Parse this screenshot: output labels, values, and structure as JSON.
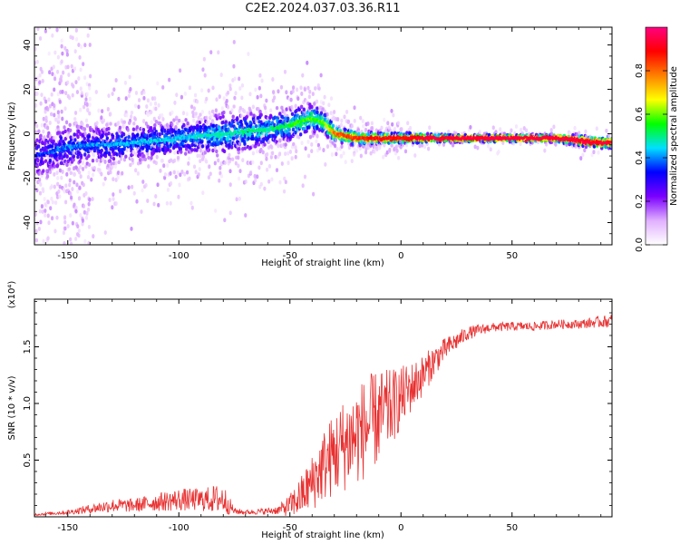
{
  "title": "C2E2.2024.037.03.36.R11",
  "chart_data": [
    {
      "type": "heatmap",
      "title": "C2E2.2024.037.03.36.R11",
      "xlabel": "Height of straight line (km)",
      "ylabel": "Frequency (Hz)",
      "xlim": [
        -165,
        95
      ],
      "ylim": [
        -50,
        48
      ],
      "x_ticks": [
        -150,
        -100,
        -50,
        0,
        50
      ],
      "y_ticks": [
        -40,
        -20,
        0,
        20,
        40
      ],
      "colorbar": {
        "label": "Normalized spectral amplitude",
        "range": [
          0,
          1
        ],
        "ticks": [
          0.0,
          0.2,
          0.4,
          0.6,
          0.8
        ],
        "tick_labels": [
          "0.0",
          "0.2",
          "0.4",
          "0.6",
          "0.8"
        ],
        "colormap": [
          "#ffffff",
          "#e0b0ff",
          "#7b00ff",
          "#0000ff",
          "#00e0ff",
          "#00ff00",
          "#ffff00",
          "#ff8000",
          "#ff0000",
          "#ff0080"
        ]
      },
      "ridge": {
        "x": [
          -165,
          -150,
          -140,
          -130,
          -120,
          -110,
          -100,
          -90,
          -80,
          -70,
          -60,
          -50,
          -40,
          -35,
          -30,
          -25,
          -20,
          -10,
          0,
          10,
          20,
          40,
          60,
          70,
          80,
          90,
          95
        ],
        "frequency": [
          -10,
          -6,
          -5,
          -5,
          -4,
          -3,
          -2,
          -1,
          0,
          1,
          2,
          4,
          7,
          5,
          0,
          -1,
          -2,
          -2,
          -2,
          -2,
          -2,
          -2,
          -2,
          -2,
          -3,
          -4,
          -4
        ],
        "amplitude": [
          0.3,
          0.35,
          0.35,
          0.38,
          0.38,
          0.4,
          0.4,
          0.42,
          0.45,
          0.45,
          0.45,
          0.5,
          0.55,
          0.55,
          0.75,
          0.8,
          0.8,
          0.85,
          0.85,
          0.9,
          0.9,
          0.92,
          0.92,
          0.92,
          0.9,
          0.9,
          0.9
        ],
        "spread": [
          16,
          14,
          12,
          12,
          11,
          11,
          11,
          11,
          13,
          12,
          11,
          10,
          9,
          7,
          5,
          4,
          4,
          3,
          3,
          2.5,
          2,
          2,
          2,
          2,
          3,
          3,
          3
        ]
      }
    },
    {
      "type": "line",
      "xlabel": "Height of straight line (km)",
      "ylabel": "SNR (10 * v/v)",
      "y_scale_label": "(x10⁴)",
      "xlim": [
        -165,
        95
      ],
      "ylim": [
        0,
        1.92
      ],
      "x_ticks": [
        -150,
        -100,
        -50,
        0,
        50
      ],
      "y_ticks": [
        0.5,
        1.0,
        1.5
      ],
      "y_tick_labels": [
        "0.5",
        "1.0",
        "1.5"
      ],
      "series": [
        {
          "color": "#e83030",
          "x": [
            -165,
            -150,
            -140,
            -130,
            -120,
            -110,
            -100,
            -90,
            -80,
            -75,
            -70,
            -60,
            -55,
            -50,
            -45,
            -40,
            -35,
            -30,
            -25,
            -20,
            -15,
            -10,
            -5,
            0,
            5,
            10,
            15,
            20,
            25,
            30,
            40,
            50,
            60,
            70,
            80,
            90,
            95
          ],
          "values": [
            0.02,
            0.04,
            0.07,
            0.1,
            0.1,
            0.13,
            0.15,
            0.15,
            0.16,
            0.05,
            0.04,
            0.05,
            0.06,
            0.1,
            0.18,
            0.3,
            0.45,
            0.55,
            0.65,
            0.72,
            0.8,
            0.88,
            0.95,
            1.05,
            1.15,
            1.25,
            1.38,
            1.48,
            1.55,
            1.62,
            1.67,
            1.68,
            1.68,
            1.7,
            1.7,
            1.72,
            1.73
          ],
          "noise": [
            0.01,
            0.02,
            0.04,
            0.06,
            0.06,
            0.08,
            0.1,
            0.1,
            0.14,
            0.03,
            0.02,
            0.03,
            0.04,
            0.1,
            0.18,
            0.25,
            0.32,
            0.38,
            0.42,
            0.45,
            0.45,
            0.42,
            0.35,
            0.28,
            0.22,
            0.18,
            0.14,
            0.1,
            0.08,
            0.06,
            0.04,
            0.04,
            0.04,
            0.04,
            0.04,
            0.05,
            0.06
          ]
        }
      ]
    }
  ]
}
